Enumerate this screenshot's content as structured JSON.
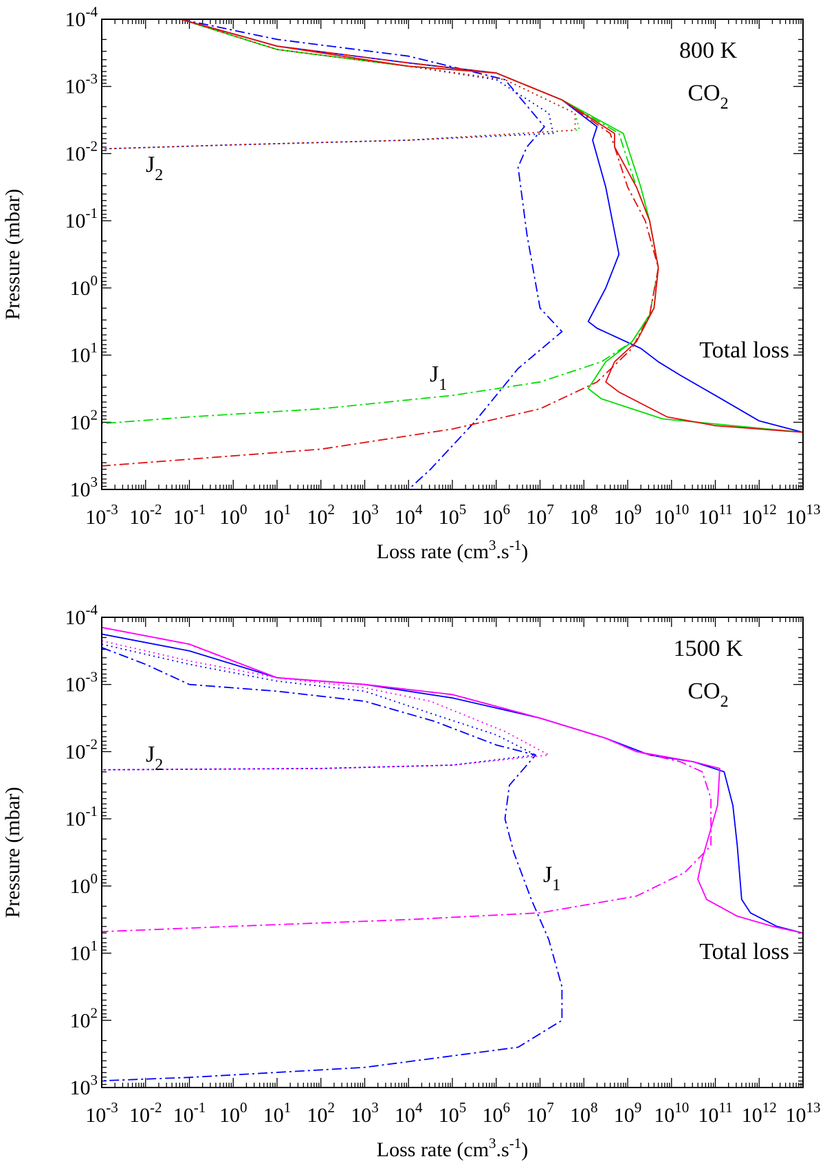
{
  "chart_data": [
    {
      "type": "line",
      "xlabel": "Loss rate (cm3.s-1)",
      "ylabel": "Pressure (mbar)",
      "xscale": "log",
      "yscale": "log",
      "xlim": [
        -3,
        13
      ],
      "ylim": [
        -4,
        3
      ],
      "y_inverted": true,
      "x_tick_exponents": [
        -3,
        -2,
        -1,
        0,
        1,
        2,
        3,
        4,
        5,
        6,
        7,
        8,
        9,
        10,
        11,
        12,
        13
      ],
      "y_tick_exponents": [
        -4,
        -3,
        -2,
        -1,
        0,
        1,
        2,
        3
      ],
      "tick_base": "10",
      "annotations": [
        {
          "text": "800 K",
          "role": "temperature"
        },
        {
          "text": "CO",
          "sub": "2",
          "role": "species"
        },
        {
          "text": "J",
          "sub": "2",
          "role": "label"
        },
        {
          "text": "J",
          "sub": "1",
          "role": "label"
        },
        {
          "text": "Total loss",
          "role": "label"
        }
      ],
      "series": [
        {
          "color": "#0000ff",
          "dash": "solid",
          "points": [
            [
              -1.2,
              -4
            ],
            [
              1,
              -3.6
            ],
            [
              4,
              -3.35
            ],
            [
              6,
              -3.2
            ],
            [
              7.5,
              -2.8
            ],
            [
              8.3,
              -2.4
            ],
            [
              8.2,
              -2.2
            ],
            [
              8.5,
              -1.5
            ],
            [
              8.8,
              -0.5
            ],
            [
              8.5,
              0
            ],
            [
              8.1,
              0.5
            ],
            [
              8.3,
              0.6
            ],
            [
              9.3,
              0.9
            ],
            [
              9.7,
              1.1
            ],
            [
              10.2,
              1.3
            ],
            [
              11,
              1.6
            ],
            [
              12,
              1.98
            ],
            [
              13,
              2.15
            ]
          ]
        },
        {
          "color": "#0000ff",
          "dash": "dot",
          "points": [
            [
              -1.2,
              -4
            ],
            [
              1,
              -3.55
            ],
            [
              4,
              -3.3
            ],
            [
              6,
              -3.1
            ],
            [
              7.2,
              -2.6
            ],
            [
              7.3,
              -2.3
            ],
            [
              4,
              -2.2
            ],
            [
              0,
              -2.13
            ],
            [
              -3,
              -2.07
            ]
          ]
        },
        {
          "color": "#0000ff",
          "dash": "dashdot",
          "points": [
            [
              -1.2,
              -4
            ],
            [
              1,
              -3.7
            ],
            [
              4,
              -3.45
            ],
            [
              6.2,
              -3.1
            ],
            [
              7.1,
              -2.4
            ],
            [
              6.7,
              -2.1
            ],
            [
              6.5,
              -1.8
            ],
            [
              6.7,
              -0.8
            ],
            [
              7,
              0.3
            ],
            [
              7.5,
              0.65
            ],
            [
              6.5,
              1.2
            ],
            [
              5.5,
              2
            ],
            [
              4.5,
              2.7
            ],
            [
              4,
              3
            ]
          ]
        },
        {
          "color": "#00dd00",
          "dash": "solid",
          "points": [
            [
              -1.2,
              -4
            ],
            [
              1,
              -3.55
            ],
            [
              4,
              -3.3
            ],
            [
              6,
              -3.2
            ],
            [
              7.5,
              -2.8
            ],
            [
              8.9,
              -2.3
            ],
            [
              9,
              -2.1
            ],
            [
              9.3,
              -1.5
            ],
            [
              9.5,
              -1
            ],
            [
              9.7,
              -0.3
            ],
            [
              9.6,
              0.3
            ],
            [
              9.1,
              0.8
            ],
            [
              8.5,
              1.1
            ],
            [
              8.1,
              1.5
            ],
            [
              8.4,
              1.65
            ],
            [
              9.8,
              1.95
            ],
            [
              13,
              2.15
            ]
          ]
        },
        {
          "color": "#00dd00",
          "dash": "dot",
          "points": [
            [
              -1.2,
              -4
            ],
            [
              1,
              -3.55
            ],
            [
              4,
              -3.3
            ],
            [
              6.2,
              -3.1
            ],
            [
              7.8,
              -2.6
            ],
            [
              7.9,
              -2.35
            ],
            [
              4,
              -2.2
            ],
            [
              0,
              -2.13
            ],
            [
              -3,
              -2.07
            ]
          ]
        },
        {
          "color": "#00dd00",
          "dash": "dashdot",
          "points": [
            [
              -1.2,
              -4
            ],
            [
              1,
              -3.55
            ],
            [
              4,
              -3.3
            ],
            [
              6,
              -3.2
            ],
            [
              7.5,
              -2.8
            ],
            [
              8.8,
              -2.3
            ],
            [
              8.9,
              -2.1
            ],
            [
              9.2,
              -1.5
            ],
            [
              9.5,
              -1
            ],
            [
              9.7,
              -0.3
            ],
            [
              9.5,
              0.4
            ],
            [
              9.1,
              0.8
            ],
            [
              8.4,
              1.1
            ],
            [
              7,
              1.4
            ],
            [
              5,
              1.6
            ],
            [
              2,
              1.8
            ],
            [
              -1,
              1.92
            ],
            [
              -3,
              2.02
            ]
          ]
        },
        {
          "color": "#e01010",
          "dash": "solid",
          "points": [
            [
              -1.2,
              -4
            ],
            [
              1,
              -3.6
            ],
            [
              4,
              -3.3
            ],
            [
              6,
              -3.2
            ],
            [
              7.5,
              -2.8
            ],
            [
              8.7,
              -2.3
            ],
            [
              8.7,
              -2.1
            ],
            [
              9.2,
              -1.5
            ],
            [
              9.5,
              -1
            ],
            [
              9.7,
              -0.3
            ],
            [
              9.6,
              0.3
            ],
            [
              9.2,
              0.8
            ],
            [
              8.7,
              1.1
            ],
            [
              8.5,
              1.4
            ],
            [
              8.8,
              1.55
            ],
            [
              9.9,
              1.92
            ],
            [
              11,
              2.05
            ],
            [
              13,
              2.15
            ]
          ]
        },
        {
          "color": "#e01010",
          "dash": "dot",
          "points": [
            [
              -1.2,
              -4
            ],
            [
              1,
              -3.55
            ],
            [
              4,
              -3.3
            ],
            [
              6.2,
              -3.1
            ],
            [
              7.8,
              -2.6
            ],
            [
              7.8,
              -2.35
            ],
            [
              4,
              -2.2
            ],
            [
              0,
              -2.13
            ],
            [
              -3,
              -2.07
            ]
          ]
        },
        {
          "color": "#e01010",
          "dash": "dashdot",
          "points": [
            [
              -1.2,
              -4
            ],
            [
              1,
              -3.6
            ],
            [
              4,
              -3.35
            ],
            [
              6,
              -3.2
            ],
            [
              7.5,
              -2.8
            ],
            [
              8.6,
              -2.3
            ],
            [
              8.7,
              -2.1
            ],
            [
              9,
              -1.5
            ],
            [
              9.4,
              -1
            ],
            [
              9.7,
              -0.3
            ],
            [
              9.5,
              0.4
            ],
            [
              9.1,
              0.9
            ],
            [
              8.3,
              1.4
            ],
            [
              7,
              1.8
            ],
            [
              5,
              2.1
            ],
            [
              2,
              2.4
            ],
            [
              -1,
              2.55
            ],
            [
              -3,
              2.65
            ]
          ]
        }
      ]
    },
    {
      "type": "line",
      "xlabel": "Loss rate (cm3.s-1)",
      "ylabel": "Pressure (mbar)",
      "xscale": "log",
      "yscale": "log",
      "xlim": [
        -3,
        13
      ],
      "ylim": [
        -4,
        3
      ],
      "y_inverted": true,
      "x_tick_exponents": [
        -3,
        -2,
        -1,
        0,
        1,
        2,
        3,
        4,
        5,
        6,
        7,
        8,
        9,
        10,
        11,
        12,
        13
      ],
      "y_tick_exponents": [
        -4,
        -3,
        -2,
        -1,
        0,
        1,
        2,
        3
      ],
      "tick_base": "10",
      "annotations": [
        {
          "text": "1500 K",
          "role": "temperature"
        },
        {
          "text": "CO",
          "sub": "2",
          "role": "species"
        },
        {
          "text": "J",
          "sub": "2",
          "role": "label"
        },
        {
          "text": "J",
          "sub": "1",
          "role": "label"
        },
        {
          "text": "Total loss",
          "role": "label"
        }
      ],
      "series": [
        {
          "color": "#0000ff",
          "dash": "solid",
          "points": [
            [
              -3,
              -3.75
            ],
            [
              -1,
              -3.5
            ],
            [
              1,
              -3.1
            ],
            [
              3,
              -3.0
            ],
            [
              5,
              -2.8
            ],
            [
              7,
              -2.5
            ],
            [
              8.5,
              -2.2
            ],
            [
              9.5,
              -1.95
            ],
            [
              10.5,
              -1.85
            ],
            [
              11.2,
              -1.7
            ],
            [
              11.4,
              -1.2
            ],
            [
              11.5,
              -0.6
            ],
            [
              11.6,
              0.2
            ],
            [
              11.8,
              0.4
            ],
            [
              12.4,
              0.6
            ],
            [
              13,
              0.7
            ]
          ]
        },
        {
          "color": "#0000ff",
          "dash": "dot",
          "points": [
            [
              -3,
              -3.6
            ],
            [
              -1,
              -3.3
            ],
            [
              1,
              -3.05
            ],
            [
              3,
              -2.9
            ],
            [
              4.6,
              -2.55
            ],
            [
              6,
              -2.25
            ],
            [
              6.9,
              -1.95
            ],
            [
              5,
              -1.8
            ],
            [
              2,
              -1.75
            ],
            [
              -3,
              -1.73
            ]
          ]
        },
        {
          "color": "#0000ff",
          "dash": "dashdot",
          "points": [
            [
              -3,
              -3.55
            ],
            [
              -2,
              -3.3
            ],
            [
              -1,
              -3.0
            ],
            [
              1,
              -2.9
            ],
            [
              3,
              -2.75
            ],
            [
              4.6,
              -2.45
            ],
            [
              6,
              -2.1
            ],
            [
              6.9,
              -1.95
            ],
            [
              6.3,
              -1.5
            ],
            [
              6.2,
              -1
            ],
            [
              6.4,
              -0.5
            ],
            [
              6.8,
              0.2
            ],
            [
              7.2,
              0.8
            ],
            [
              7.5,
              1.5
            ],
            [
              7.5,
              2
            ],
            [
              6.5,
              2.4
            ],
            [
              3,
              2.7
            ],
            [
              -1,
              2.85
            ],
            [
              -3,
              2.9
            ]
          ]
        },
        {
          "color": "#ff00ff",
          "dash": "solid",
          "points": [
            [
              -3,
              -3.85
            ],
            [
              -1,
              -3.6
            ],
            [
              1,
              -3.1
            ],
            [
              3,
              -3.0
            ],
            [
              5,
              -2.85
            ],
            [
              7,
              -2.5
            ],
            [
              8.5,
              -2.2
            ],
            [
              9.2,
              -2.0
            ],
            [
              10.5,
              -1.85
            ],
            [
              11.1,
              -1.75
            ],
            [
              11.05,
              -1.2
            ],
            [
              10.7,
              -0.4
            ],
            [
              10.6,
              -0.1
            ],
            [
              10.8,
              0.2
            ],
            [
              11.5,
              0.45
            ],
            [
              12.3,
              0.6
            ],
            [
              13,
              0.7
            ]
          ]
        },
        {
          "color": "#ff00ff",
          "dash": "dot",
          "points": [
            [
              -3,
              -3.65
            ],
            [
              -1,
              -3.35
            ],
            [
              1,
              -3.1
            ],
            [
              3,
              -2.95
            ],
            [
              4.5,
              -2.75
            ],
            [
              6.2,
              -2.3
            ],
            [
              7.2,
              -1.95
            ],
            [
              5,
              -1.8
            ],
            [
              2,
              -1.75
            ],
            [
              -3,
              -1.73
            ]
          ]
        },
        {
          "color": "#ff00ff",
          "dash": "dashdot",
          "points": [
            [
              -3,
              -3.85
            ],
            [
              -1,
              -3.6
            ],
            [
              1,
              -3.1
            ],
            [
              3,
              -3.0
            ],
            [
              5,
              -2.85
            ],
            [
              7,
              -2.5
            ],
            [
              8.5,
              -2.2
            ],
            [
              9.2,
              -2.0
            ],
            [
              10.2,
              -1.85
            ],
            [
              10.7,
              -1.7
            ],
            [
              10.9,
              -1.3
            ],
            [
              10.9,
              -0.6
            ],
            [
              10.3,
              -0.2
            ],
            [
              9.2,
              0.15
            ],
            [
              7,
              0.4
            ],
            [
              4,
              0.5
            ],
            [
              0,
              0.6
            ],
            [
              -3,
              0.68
            ]
          ]
        }
      ]
    }
  ]
}
